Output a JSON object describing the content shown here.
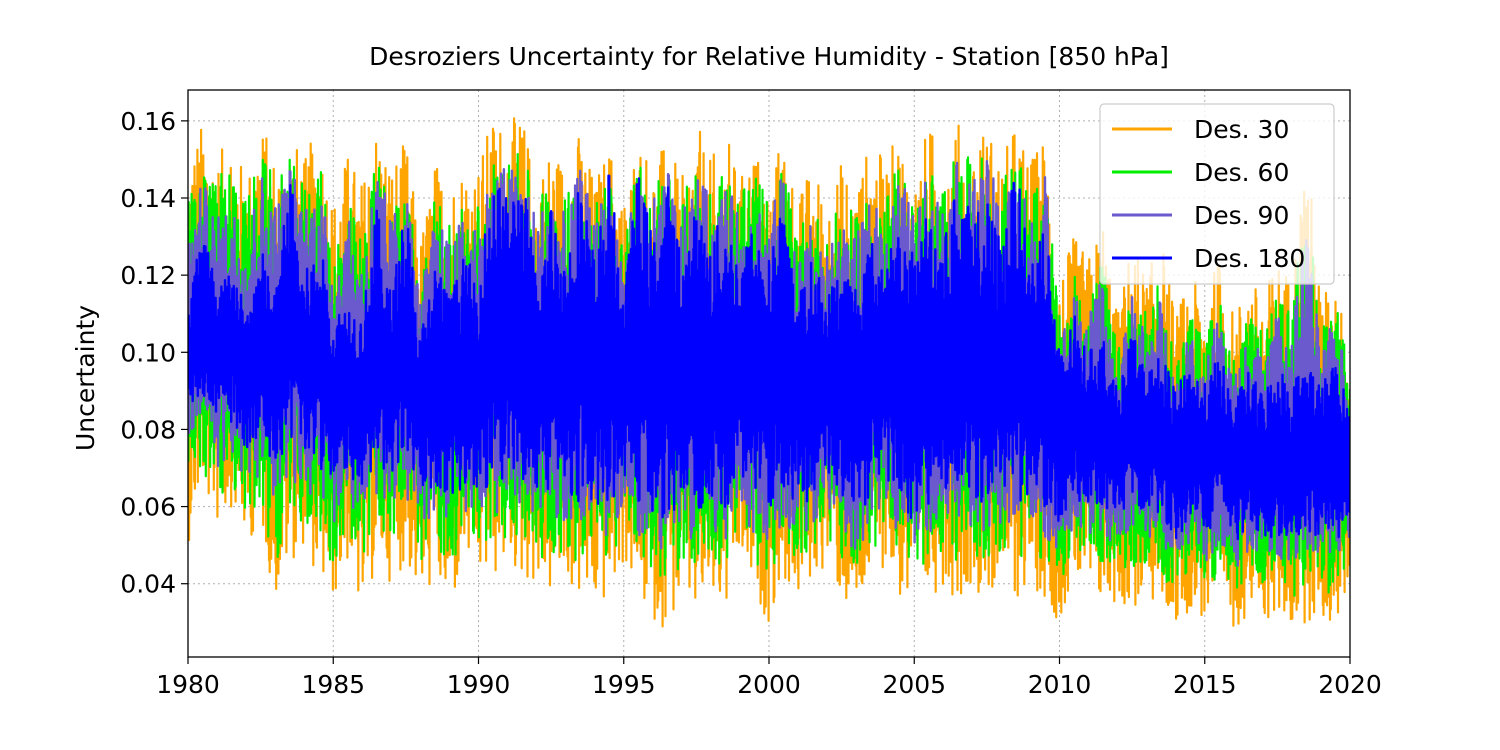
{
  "chart_data": {
    "type": "line",
    "title": "Desroziers Uncertainty for Relative Humidity  - Station  [850 hPa]",
    "xlabel": "",
    "ylabel": "Uncertainty",
    "xlim": [
      1980,
      2020
    ],
    "ylim": [
      0.021,
      0.168
    ],
    "x_ticks": [
      "1980",
      "1985",
      "1990",
      "1995",
      "2000",
      "2005",
      "2010",
      "2015",
      "2020"
    ],
    "y_ticks": [
      "0.04",
      "0.06",
      "0.08",
      "0.10",
      "0.12",
      "0.14",
      "0.16"
    ],
    "grid": true,
    "legend_position": "top-right",
    "series": [
      {
        "name": "Des. 30",
        "color": "#FFA500",
        "x": [
          1980.0,
          1980.5,
          1981.0,
          1981.5,
          1982.0,
          1982.5,
          1983.0,
          1983.5,
          1984.0,
          1984.5,
          1985.0,
          1985.5,
          1986.0,
          1986.5,
          1987.0,
          1987.5,
          1988.0,
          1988.5,
          1989.0,
          1989.5,
          1990.0,
          1990.5,
          1991.0,
          1991.5,
          1992.0,
          1992.5,
          1993.0,
          1993.5,
          1994.0,
          1994.5,
          1995.0,
          1995.5,
          1996.0,
          1996.5,
          1997.0,
          1997.5,
          1998.0,
          1998.5,
          1999.0,
          1999.5,
          2000.0,
          2000.5,
          2001.0,
          2001.5,
          2002.0,
          2002.5,
          2003.0,
          2003.5,
          2004.0,
          2004.5,
          2005.0,
          2005.5,
          2006.0,
          2006.5,
          2007.0,
          2007.5,
          2008.0,
          2008.5,
          2009.0,
          2009.5,
          2010.0,
          2010.5,
          2011.0,
          2011.5,
          2012.0,
          2012.5,
          2013.0,
          2013.5,
          2014.0,
          2014.5,
          2015.0,
          2015.5,
          2016.0,
          2016.5,
          2017.0,
          2017.5,
          2018.0,
          2018.5,
          2019.0,
          2019.5,
          2020.0
        ],
        "upper": [
          0.15,
          0.16,
          0.15,
          0.158,
          0.145,
          0.16,
          0.152,
          0.158,
          0.15,
          0.16,
          0.14,
          0.152,
          0.145,
          0.16,
          0.15,
          0.155,
          0.13,
          0.15,
          0.145,
          0.15,
          0.15,
          0.162,
          0.16,
          0.162,
          0.145,
          0.155,
          0.15,
          0.158,
          0.145,
          0.155,
          0.14,
          0.158,
          0.15,
          0.155,
          0.145,
          0.16,
          0.15,
          0.158,
          0.145,
          0.155,
          0.145,
          0.158,
          0.14,
          0.15,
          0.14,
          0.15,
          0.145,
          0.155,
          0.15,
          0.158,
          0.145,
          0.16,
          0.15,
          0.16,
          0.155,
          0.16,
          0.15,
          0.16,
          0.15,
          0.158,
          0.12,
          0.13,
          0.125,
          0.135,
          0.11,
          0.13,
          0.12,
          0.13,
          0.11,
          0.12,
          0.115,
          0.125,
          0.11,
          0.12,
          0.115,
          0.125,
          0.12,
          0.155,
          0.115,
          0.12,
          0.1
        ],
        "lower": [
          0.05,
          0.065,
          0.055,
          0.06,
          0.05,
          0.055,
          0.035,
          0.045,
          0.05,
          0.04,
          0.035,
          0.045,
          0.03,
          0.045,
          0.04,
          0.045,
          0.035,
          0.04,
          0.03,
          0.045,
          0.04,
          0.04,
          0.045,
          0.04,
          0.04,
          0.036,
          0.04,
          0.035,
          0.033,
          0.035,
          0.045,
          0.035,
          0.03,
          0.028,
          0.035,
          0.03,
          0.035,
          0.03,
          0.045,
          0.035,
          0.03,
          0.04,
          0.035,
          0.04,
          0.045,
          0.035,
          0.028,
          0.04,
          0.045,
          0.035,
          0.028,
          0.035,
          0.04,
          0.035,
          0.04,
          0.035,
          0.04,
          0.035,
          0.04,
          0.035,
          0.03,
          0.04,
          0.035,
          0.033,
          0.035,
          0.032,
          0.035,
          0.033,
          0.029,
          0.033,
          0.03,
          0.033,
          0.028,
          0.032,
          0.03,
          0.03,
          0.028,
          0.03,
          0.03,
          0.028,
          0.04
        ]
      },
      {
        "name": "Des. 60",
        "color": "#00EE00",
        "x": [
          1980.0,
          1980.5,
          1981.0,
          1981.5,
          1982.0,
          1982.5,
          1983.0,
          1983.5,
          1984.0,
          1984.5,
          1985.0,
          1985.5,
          1986.0,
          1986.5,
          1987.0,
          1987.5,
          1988.0,
          1988.5,
          1989.0,
          1989.5,
          1990.0,
          1990.5,
          1991.0,
          1991.5,
          1992.0,
          1992.5,
          1993.0,
          1993.5,
          1994.0,
          1994.5,
          1995.0,
          1995.5,
          1996.0,
          1996.5,
          1997.0,
          1997.5,
          1998.0,
          1998.5,
          1999.0,
          1999.5,
          2000.0,
          2000.5,
          2001.0,
          2001.5,
          2002.0,
          2002.5,
          2003.0,
          2003.5,
          2004.0,
          2004.5,
          2005.0,
          2005.5,
          2006.0,
          2006.5,
          2007.0,
          2007.5,
          2008.0,
          2008.5,
          2009.0,
          2009.5,
          2010.0,
          2010.5,
          2011.0,
          2011.5,
          2012.0,
          2012.5,
          2013.0,
          2013.5,
          2014.0,
          2014.5,
          2015.0,
          2015.5,
          2016.0,
          2016.5,
          2017.0,
          2017.5,
          2018.0,
          2018.5,
          2019.0,
          2019.5,
          2020.0
        ],
        "upper": [
          0.14,
          0.15,
          0.145,
          0.15,
          0.14,
          0.152,
          0.145,
          0.15,
          0.145,
          0.15,
          0.13,
          0.14,
          0.13,
          0.152,
          0.14,
          0.148,
          0.12,
          0.14,
          0.135,
          0.14,
          0.14,
          0.15,
          0.15,
          0.152,
          0.14,
          0.15,
          0.14,
          0.15,
          0.14,
          0.15,
          0.13,
          0.15,
          0.145,
          0.15,
          0.14,
          0.15,
          0.145,
          0.15,
          0.14,
          0.148,
          0.14,
          0.15,
          0.13,
          0.14,
          0.13,
          0.14,
          0.135,
          0.145,
          0.14,
          0.15,
          0.14,
          0.15,
          0.145,
          0.152,
          0.15,
          0.152,
          0.145,
          0.152,
          0.14,
          0.15,
          0.11,
          0.12,
          0.115,
          0.125,
          0.1,
          0.12,
          0.11,
          0.12,
          0.1,
          0.11,
          0.105,
          0.115,
          0.1,
          0.11,
          0.105,
          0.115,
          0.11,
          0.145,
          0.105,
          0.115,
          0.095
        ],
        "lower": [
          0.06,
          0.07,
          0.06,
          0.065,
          0.055,
          0.06,
          0.045,
          0.055,
          0.055,
          0.05,
          0.045,
          0.05,
          0.045,
          0.055,
          0.05,
          0.055,
          0.045,
          0.05,
          0.045,
          0.05,
          0.05,
          0.05,
          0.052,
          0.05,
          0.048,
          0.045,
          0.048,
          0.045,
          0.045,
          0.045,
          0.052,
          0.045,
          0.042,
          0.04,
          0.045,
          0.042,
          0.045,
          0.042,
          0.052,
          0.045,
          0.042,
          0.048,
          0.045,
          0.048,
          0.052,
          0.045,
          0.04,
          0.048,
          0.052,
          0.045,
          0.04,
          0.045,
          0.048,
          0.045,
          0.048,
          0.045,
          0.048,
          0.045,
          0.048,
          0.045,
          0.04,
          0.048,
          0.045,
          0.042,
          0.045,
          0.042,
          0.045,
          0.042,
          0.037,
          0.042,
          0.038,
          0.042,
          0.036,
          0.04,
          0.038,
          0.038,
          0.036,
          0.038,
          0.038,
          0.036,
          0.045
        ]
      },
      {
        "name": "Des. 90",
        "color": "#6A5ACD",
        "x": [
          1980.0,
          1980.5,
          1981.0,
          1981.5,
          1982.0,
          1982.5,
          1983.0,
          1983.5,
          1984.0,
          1984.5,
          1985.0,
          1985.5,
          1986.0,
          1986.5,
          1987.0,
          1987.5,
          1988.0,
          1988.5,
          1989.0,
          1989.5,
          1990.0,
          1990.5,
          1991.0,
          1991.5,
          1992.0,
          1992.5,
          1993.0,
          1993.5,
          1994.0,
          1994.5,
          1995.0,
          1995.5,
          1996.0,
          1996.5,
          1997.0,
          1997.5,
          1998.0,
          1998.5,
          1999.0,
          1999.5,
          2000.0,
          2000.5,
          2001.0,
          2001.5,
          2002.0,
          2002.5,
          2003.0,
          2003.5,
          2004.0,
          2004.5,
          2005.0,
          2005.5,
          2006.0,
          2006.5,
          2007.0,
          2007.5,
          2008.0,
          2008.5,
          2009.0,
          2009.5,
          2010.0,
          2010.5,
          2011.0,
          2011.5,
          2012.0,
          2012.5,
          2013.0,
          2013.5,
          2014.0,
          2014.5,
          2015.0,
          2015.5,
          2016.0,
          2016.5,
          2017.0,
          2017.5,
          2018.0,
          2018.5,
          2019.0,
          2019.5,
          2020.0
        ],
        "upper": [
          0.13,
          0.145,
          0.135,
          0.14,
          0.13,
          0.148,
          0.14,
          0.15,
          0.14,
          0.145,
          0.125,
          0.135,
          0.125,
          0.15,
          0.135,
          0.145,
          0.115,
          0.135,
          0.13,
          0.135,
          0.135,
          0.15,
          0.148,
          0.15,
          0.135,
          0.145,
          0.135,
          0.148,
          0.135,
          0.148,
          0.125,
          0.148,
          0.14,
          0.148,
          0.135,
          0.148,
          0.14,
          0.145,
          0.135,
          0.145,
          0.135,
          0.148,
          0.125,
          0.135,
          0.125,
          0.135,
          0.13,
          0.14,
          0.135,
          0.148,
          0.135,
          0.148,
          0.14,
          0.15,
          0.145,
          0.15,
          0.14,
          0.15,
          0.135,
          0.148,
          0.105,
          0.115,
          0.11,
          0.12,
          0.095,
          0.115,
          0.105,
          0.115,
          0.095,
          0.105,
          0.1,
          0.11,
          0.095,
          0.105,
          0.1,
          0.11,
          0.105,
          0.135,
          0.1,
          0.11,
          0.09
        ],
        "lower": [
          0.075,
          0.08,
          0.07,
          0.072,
          0.065,
          0.068,
          0.055,
          0.065,
          0.065,
          0.06,
          0.055,
          0.06,
          0.055,
          0.062,
          0.06,
          0.062,
          0.055,
          0.058,
          0.055,
          0.058,
          0.058,
          0.058,
          0.06,
          0.058,
          0.056,
          0.055,
          0.056,
          0.052,
          0.052,
          0.052,
          0.06,
          0.052,
          0.05,
          0.048,
          0.052,
          0.05,
          0.052,
          0.05,
          0.06,
          0.052,
          0.05,
          0.055,
          0.052,
          0.055,
          0.06,
          0.052,
          0.048,
          0.055,
          0.06,
          0.052,
          0.048,
          0.052,
          0.055,
          0.052,
          0.055,
          0.052,
          0.055,
          0.052,
          0.055,
          0.052,
          0.048,
          0.055,
          0.052,
          0.05,
          0.052,
          0.05,
          0.052,
          0.05,
          0.044,
          0.05,
          0.045,
          0.05,
          0.043,
          0.048,
          0.045,
          0.045,
          0.043,
          0.045,
          0.045,
          0.043,
          0.052
        ]
      },
      {
        "name": "Des. 180",
        "color": "#0000FF",
        "x": [
          1980.0,
          1980.5,
          1981.0,
          1981.5,
          1982.0,
          1982.5,
          1983.0,
          1983.5,
          1984.0,
          1984.5,
          1985.0,
          1985.5,
          1986.0,
          1986.5,
          1987.0,
          1987.5,
          1988.0,
          1988.5,
          1989.0,
          1989.5,
          1990.0,
          1990.5,
          1991.0,
          1991.5,
          1992.0,
          1992.5,
          1993.0,
          1993.5,
          1994.0,
          1994.5,
          1995.0,
          1995.5,
          1996.0,
          1996.5,
          1997.0,
          1997.5,
          1998.0,
          1998.5,
          1999.0,
          1999.5,
          2000.0,
          2000.5,
          2001.0,
          2001.5,
          2002.0,
          2002.5,
          2003.0,
          2003.5,
          2004.0,
          2004.5,
          2005.0,
          2005.5,
          2006.0,
          2006.5,
          2007.0,
          2007.5,
          2008.0,
          2008.5,
          2009.0,
          2009.5,
          2010.0,
          2010.5,
          2011.0,
          2011.5,
          2012.0,
          2012.5,
          2013.0,
          2013.5,
          2014.0,
          2014.5,
          2015.0,
          2015.5,
          2016.0,
          2016.5,
          2017.0,
          2017.5,
          2018.0,
          2018.5,
          2019.0,
          2019.5,
          2020.0
        ],
        "upper": [
          0.11,
          0.138,
          0.115,
          0.125,
          0.11,
          0.128,
          0.115,
          0.147,
          0.12,
          0.13,
          0.11,
          0.115,
          0.11,
          0.138,
          0.115,
          0.14,
          0.105,
          0.125,
          0.115,
          0.125,
          0.12,
          0.148,
          0.14,
          0.148,
          0.12,
          0.14,
          0.125,
          0.147,
          0.125,
          0.148,
          0.115,
          0.148,
          0.13,
          0.145,
          0.125,
          0.138,
          0.13,
          0.137,
          0.125,
          0.135,
          0.125,
          0.14,
          0.115,
          0.125,
          0.115,
          0.125,
          0.12,
          0.13,
          0.125,
          0.132,
          0.125,
          0.14,
          0.13,
          0.145,
          0.135,
          0.14,
          0.13,
          0.148,
          0.125,
          0.138,
          0.1,
          0.11,
          0.1,
          0.105,
          0.09,
          0.105,
          0.095,
          0.1,
          0.09,
          0.098,
          0.092,
          0.1,
          0.088,
          0.095,
          0.09,
          0.098,
          0.092,
          0.1,
          0.092,
          0.098,
          0.085
        ],
        "lower": [
          0.085,
          0.088,
          0.08,
          0.082,
          0.075,
          0.078,
          0.07,
          0.075,
          0.075,
          0.07,
          0.065,
          0.068,
          0.065,
          0.07,
          0.068,
          0.07,
          0.062,
          0.065,
          0.062,
          0.065,
          0.065,
          0.065,
          0.068,
          0.065,
          0.063,
          0.062,
          0.063,
          0.06,
          0.06,
          0.06,
          0.068,
          0.06,
          0.058,
          0.056,
          0.06,
          0.058,
          0.06,
          0.058,
          0.068,
          0.06,
          0.058,
          0.062,
          0.06,
          0.062,
          0.068,
          0.06,
          0.056,
          0.062,
          0.068,
          0.06,
          0.056,
          0.06,
          0.062,
          0.06,
          0.062,
          0.06,
          0.062,
          0.06,
          0.062,
          0.06,
          0.055,
          0.062,
          0.06,
          0.058,
          0.06,
          0.058,
          0.06,
          0.058,
          0.05,
          0.058,
          0.052,
          0.058,
          0.05,
          0.055,
          0.052,
          0.052,
          0.05,
          0.052,
          0.052,
          0.05,
          0.058
        ]
      }
    ]
  }
}
